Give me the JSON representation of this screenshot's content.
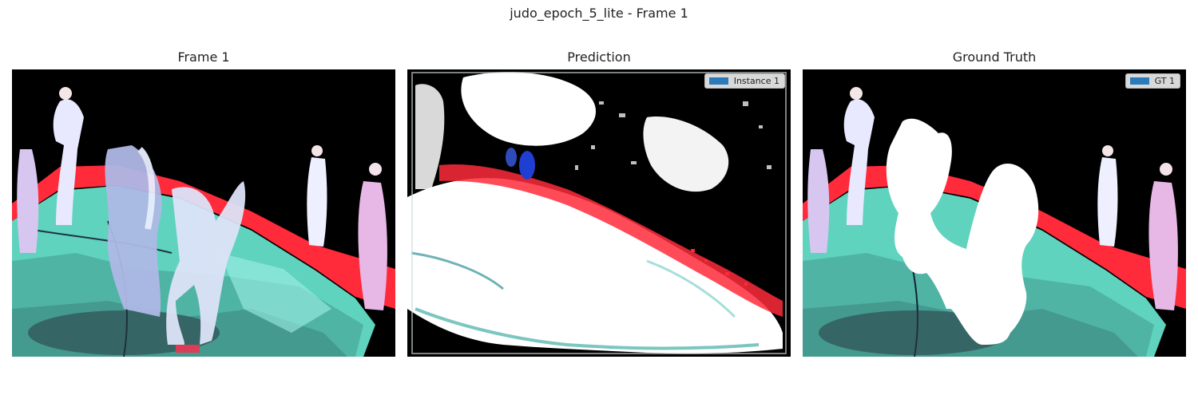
{
  "figure": {
    "suptitle": "judo_epoch_5_lite - Frame 1"
  },
  "panels": [
    {
      "title": "Frame 1",
      "content": "judo match video frame with athletes on mat"
    },
    {
      "title": "Prediction",
      "content": "predicted segmentation overlay",
      "legend": {
        "label": "Instance 1",
        "color": "#2b7bba"
      }
    },
    {
      "title": "Ground Truth",
      "content": "ground truth mask of two fighters",
      "legend": {
        "label": "GT 1",
        "color": "#2b7bba"
      }
    }
  ],
  "colors": {
    "mat_teal": "#5fd3be",
    "mat_red": "#ff2a3a",
    "mask_white": "#ffffff",
    "background": "#000000"
  }
}
